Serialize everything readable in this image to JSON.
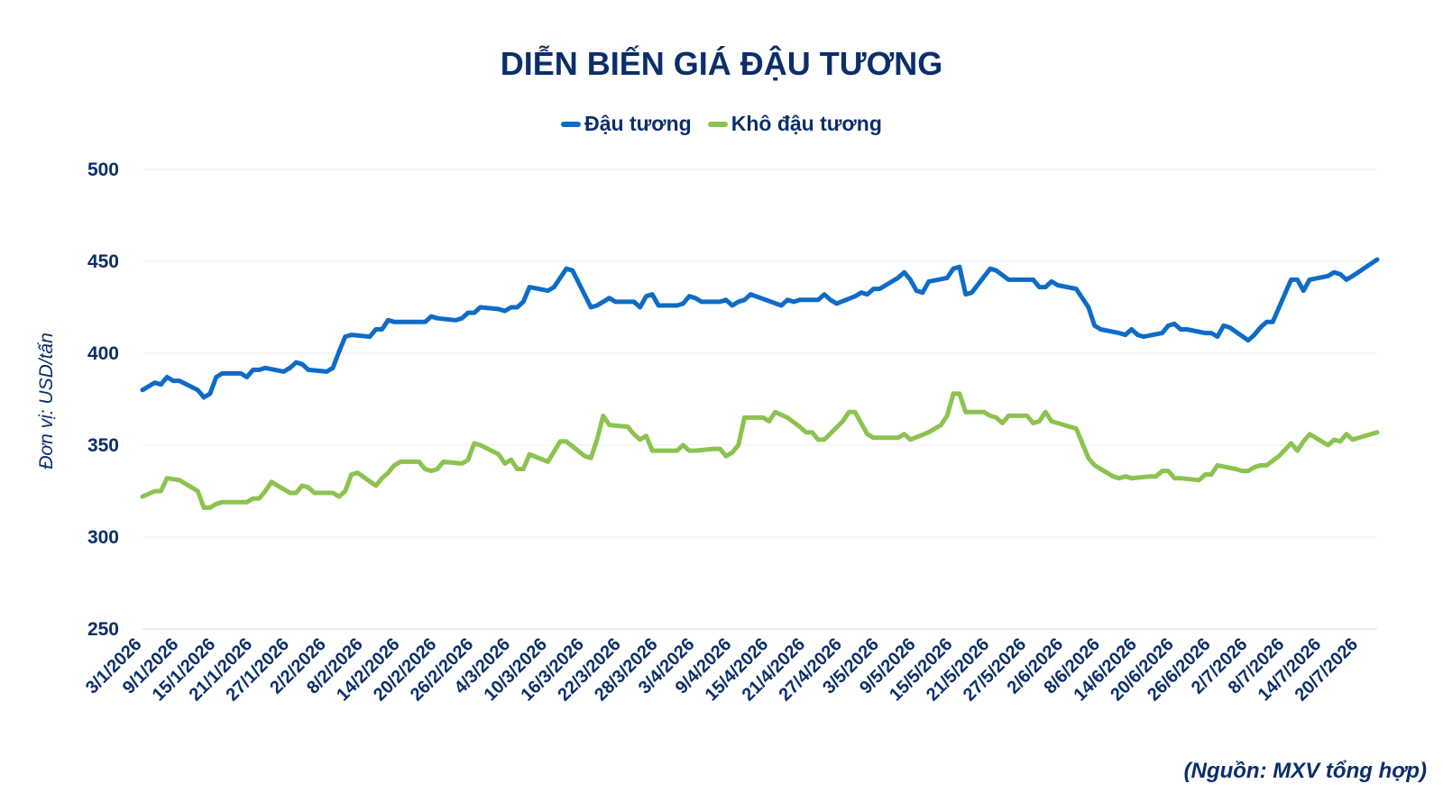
{
  "chart_data": {
    "type": "line",
    "title": "DIỄN BIẾN GIÁ ĐẬU TƯƠNG",
    "ylabel": "Đơn vị: USD/tấn",
    "xlabel": "",
    "source": "(Nguồn: MXV tổng hợp)",
    "ylim": [
      250,
      500
    ],
    "yticks": [
      250,
      300,
      350,
      400,
      450,
      500
    ],
    "grid": "horizontal",
    "legend_position": "top-center",
    "x_start": "3/1/2026",
    "x_end": "23/7/2026",
    "x_tick_labels": [
      "3/1/2026",
      "9/1/2026",
      "15/1/2026",
      "21/1/2026",
      "27/1/2026",
      "2/2/2026",
      "8/2/2026",
      "14/2/2026",
      "20/2/2026",
      "26/2/2026",
      "4/3/2026",
      "10/3/2026",
      "16/3/2026",
      "22/3/2026",
      "28/3/2026",
      "3/4/2026",
      "9/4/2026",
      "15/4/2026",
      "21/4/2026",
      "27/4/2026",
      "3/5/2026",
      "9/5/2026",
      "15/5/2026",
      "21/5/2026",
      "27/5/2026",
      "2/6/2026",
      "8/6/2026",
      "14/6/2026",
      "20/6/2026",
      "26/6/2026",
      "2/7/2026",
      "8/7/2026",
      "14/7/2026",
      "20/7/2026"
    ],
    "series": [
      {
        "name": "Đậu tương",
        "color": "#0e6bc7",
        "points": [
          [
            "3/1/2026",
            380
          ],
          [
            "5/1/2026",
            384
          ],
          [
            "6/1/2026",
            383
          ],
          [
            "7/1/2026",
            387
          ],
          [
            "8/1/2026",
            385
          ],
          [
            "9/1/2026",
            385
          ],
          [
            "12/1/2026",
            380
          ],
          [
            "13/1/2026",
            376
          ],
          [
            "14/1/2026",
            378
          ],
          [
            "15/1/2026",
            387
          ],
          [
            "16/1/2026",
            389
          ],
          [
            "19/1/2026",
            389
          ],
          [
            "20/1/2026",
            387
          ],
          [
            "21/1/2026",
            391
          ],
          [
            "22/1/2026",
            391
          ],
          [
            "23/1/2026",
            392
          ],
          [
            "26/1/2026",
            390
          ],
          [
            "27/1/2026",
            392
          ],
          [
            "28/1/2026",
            395
          ],
          [
            "29/1/2026",
            394
          ],
          [
            "30/1/2026",
            391
          ],
          [
            "2/2/2026",
            390
          ],
          [
            "3/2/2026",
            392
          ],
          [
            "4/2/2026",
            401
          ],
          [
            "5/2/2026",
            409
          ],
          [
            "6/2/2026",
            410
          ],
          [
            "9/2/2026",
            409
          ],
          [
            "10/2/2026",
            413
          ],
          [
            "11/2/2026",
            413
          ],
          [
            "12/2/2026",
            418
          ],
          [
            "13/2/2026",
            417
          ],
          [
            "16/2/2026",
            417
          ],
          [
            "17/2/2026",
            417
          ],
          [
            "18/2/2026",
            417
          ],
          [
            "19/2/2026",
            420
          ],
          [
            "20/2/2026",
            419
          ],
          [
            "23/2/2026",
            418
          ],
          [
            "24/2/2026",
            419
          ],
          [
            "25/2/2026",
            422
          ],
          [
            "26/2/2026",
            422
          ],
          [
            "27/2/2026",
            425
          ],
          [
            "2/3/2026",
            424
          ],
          [
            "3/3/2026",
            423
          ],
          [
            "4/3/2026",
            425
          ],
          [
            "5/3/2026",
            425
          ],
          [
            "6/3/2026",
            428
          ],
          [
            "7/3/2026",
            436
          ],
          [
            "10/3/2026",
            434
          ],
          [
            "11/3/2026",
            436
          ],
          [
            "13/3/2026",
            446
          ],
          [
            "14/3/2026",
            445
          ],
          [
            "17/3/2026",
            425
          ],
          [
            "18/3/2026",
            426
          ],
          [
            "20/3/2026",
            430
          ],
          [
            "21/3/2026",
            428
          ],
          [
            "24/3/2026",
            428
          ],
          [
            "25/3/2026",
            425
          ],
          [
            "26/3/2026",
            431
          ],
          [
            "27/3/2026",
            432
          ],
          [
            "28/3/2026",
            426
          ],
          [
            "31/3/2026",
            426
          ],
          [
            "1/4/2026",
            427
          ],
          [
            "2/4/2026",
            431
          ],
          [
            "3/4/2026",
            430
          ],
          [
            "4/4/2026",
            428
          ],
          [
            "7/4/2026",
            428
          ],
          [
            "8/4/2026",
            429
          ],
          [
            "9/4/2026",
            426
          ],
          [
            "10/4/2026",
            428
          ],
          [
            "11/4/2026",
            429
          ],
          [
            "12/4/2026",
            432
          ],
          [
            "17/4/2026",
            426
          ],
          [
            "18/4/2026",
            429
          ],
          [
            "19/4/2026",
            428
          ],
          [
            "20/4/2026",
            429
          ],
          [
            "21/4/2026",
            429
          ],
          [
            "23/4/2026",
            429
          ],
          [
            "24/4/2026",
            432
          ],
          [
            "25/4/2026",
            429
          ],
          [
            "26/4/2026",
            427
          ],
          [
            "29/4/2026",
            431
          ],
          [
            "30/4/2026",
            433
          ],
          [
            "1/5/2026",
            432
          ],
          [
            "2/5/2026",
            435
          ],
          [
            "3/5/2026",
            435
          ],
          [
            "6/5/2026",
            441
          ],
          [
            "7/5/2026",
            444
          ],
          [
            "8/5/2026",
            440
          ],
          [
            "9/5/2026",
            434
          ],
          [
            "10/5/2026",
            433
          ],
          [
            "11/5/2026",
            439
          ],
          [
            "14/5/2026",
            441
          ],
          [
            "15/5/2026",
            446
          ],
          [
            "16/5/2026",
            447
          ],
          [
            "17/5/2026",
            432
          ],
          [
            "18/5/2026",
            433
          ],
          [
            "21/5/2026",
            446
          ],
          [
            "22/5/2026",
            445
          ],
          [
            "24/5/2026",
            440
          ],
          [
            "25/5/2026",
            440
          ],
          [
            "28/5/2026",
            440
          ],
          [
            "29/5/2026",
            436
          ],
          [
            "30/5/2026",
            436
          ],
          [
            "31/5/2026",
            439
          ],
          [
            "1/6/2026",
            437
          ],
          [
            "4/6/2026",
            435
          ],
          [
            "6/6/2026",
            425
          ],
          [
            "7/6/2026",
            415
          ],
          [
            "8/6/2026",
            413
          ],
          [
            "11/6/2026",
            411
          ],
          [
            "12/6/2026",
            410
          ],
          [
            "13/6/2026",
            413
          ],
          [
            "14/6/2026",
            410
          ],
          [
            "15/6/2026",
            409
          ],
          [
            "18/6/2026",
            411
          ],
          [
            "19/6/2026",
            415
          ],
          [
            "20/6/2026",
            416
          ],
          [
            "21/6/2026",
            413
          ],
          [
            "22/6/2026",
            413
          ],
          [
            "25/6/2026",
            411
          ],
          [
            "26/6/2026",
            411
          ],
          [
            "27/6/2026",
            409
          ],
          [
            "28/6/2026",
            415
          ],
          [
            "29/6/2026",
            414
          ],
          [
            "2/7/2026",
            407
          ],
          [
            "3/7/2026",
            410
          ],
          [
            "4/7/2026",
            414
          ],
          [
            "5/7/2026",
            417
          ],
          [
            "6/7/2026",
            417
          ],
          [
            "9/7/2026",
            440
          ],
          [
            "10/7/2026",
            440
          ],
          [
            "11/7/2026",
            434
          ],
          [
            "12/7/2026",
            440
          ],
          [
            "15/7/2026",
            442
          ],
          [
            "16/7/2026",
            444
          ],
          [
            "17/7/2026",
            443
          ],
          [
            "18/7/2026",
            440
          ],
          [
            "19/7/2026",
            442
          ],
          [
            "23/7/2026",
            451
          ]
        ]
      },
      {
        "name": "Khô đậu tương",
        "color": "#8cc34f",
        "points": [
          [
            "3/1/2026",
            322
          ],
          [
            "5/1/2026",
            325
          ],
          [
            "6/1/2026",
            325
          ],
          [
            "7/1/2026",
            332
          ],
          [
            "9/1/2026",
            331
          ],
          [
            "12/1/2026",
            325
          ],
          [
            "13/1/2026",
            316
          ],
          [
            "14/1/2026",
            316
          ],
          [
            "15/1/2026",
            318
          ],
          [
            "16/1/2026",
            319
          ],
          [
            "19/1/2026",
            319
          ],
          [
            "20/1/2026",
            319
          ],
          [
            "21/1/2026",
            321
          ],
          [
            "22/1/2026",
            321
          ],
          [
            "23/1/2026",
            325
          ],
          [
            "24/1/2026",
            330
          ],
          [
            "27/1/2026",
            324
          ],
          [
            "28/1/2026",
            324
          ],
          [
            "29/1/2026",
            328
          ],
          [
            "30/1/2026",
            327
          ],
          [
            "31/1/2026",
            324
          ],
          [
            "3/2/2026",
            324
          ],
          [
            "4/2/2026",
            322
          ],
          [
            "5/2/2026",
            325
          ],
          [
            "6/2/2026",
            334
          ],
          [
            "7/2/2026",
            335
          ],
          [
            "10/2/2026",
            328
          ],
          [
            "11/2/2026",
            332
          ],
          [
            "12/2/2026",
            335
          ],
          [
            "13/2/2026",
            339
          ],
          [
            "14/2/2026",
            341
          ],
          [
            "17/2/2026",
            341
          ],
          [
            "18/2/2026",
            337
          ],
          [
            "19/2/2026",
            336
          ],
          [
            "20/2/2026",
            337
          ],
          [
            "21/2/2026",
            341
          ],
          [
            "24/2/2026",
            340
          ],
          [
            "25/2/2026",
            342
          ],
          [
            "26/2/2026",
            351
          ],
          [
            "27/2/2026",
            350
          ],
          [
            "2/3/2026",
            345
          ],
          [
            "3/3/2026",
            340
          ],
          [
            "4/3/2026",
            342
          ],
          [
            "5/3/2026",
            337
          ],
          [
            "6/3/2026",
            337
          ],
          [
            "7/3/2026",
            345
          ],
          [
            "10/3/2026",
            341
          ],
          [
            "12/3/2026",
            352
          ],
          [
            "13/3/2026",
            352
          ],
          [
            "16/3/2026",
            344
          ],
          [
            "17/3/2026",
            343
          ],
          [
            "18/3/2026",
            353
          ],
          [
            "19/3/2026",
            366
          ],
          [
            "20/3/2026",
            361
          ],
          [
            "23/3/2026",
            360
          ],
          [
            "24/3/2026",
            356
          ],
          [
            "25/3/2026",
            353
          ],
          [
            "26/3/2026",
            355
          ],
          [
            "27/3/2026",
            347
          ],
          [
            "30/3/2026",
            347
          ],
          [
            "31/3/2026",
            347
          ],
          [
            "1/4/2026",
            350
          ],
          [
            "2/4/2026",
            347
          ],
          [
            "3/4/2026",
            347
          ],
          [
            "6/4/2026",
            348
          ],
          [
            "7/4/2026",
            348
          ],
          [
            "8/4/2026",
            344
          ],
          [
            "9/4/2026",
            346
          ],
          [
            "10/4/2026",
            350
          ],
          [
            "11/4/2026",
            365
          ],
          [
            "14/4/2026",
            365
          ],
          [
            "15/4/2026",
            363
          ],
          [
            "16/4/2026",
            368
          ],
          [
            "18/4/2026",
            365
          ],
          [
            "20/4/2026",
            360
          ],
          [
            "21/4/2026",
            357
          ],
          [
            "22/4/2026",
            357
          ],
          [
            "23/4/2026",
            353
          ],
          [
            "24/4/2026",
            353
          ],
          [
            "27/4/2026",
            363
          ],
          [
            "28/4/2026",
            368
          ],
          [
            "29/4/2026",
            368
          ],
          [
            "1/5/2026",
            356
          ],
          [
            "2/5/2026",
            354
          ],
          [
            "5/5/2026",
            354
          ],
          [
            "6/5/2026",
            354
          ],
          [
            "7/5/2026",
            356
          ],
          [
            "8/5/2026",
            353
          ],
          [
            "11/5/2026",
            357
          ],
          [
            "13/5/2026",
            361
          ],
          [
            "14/5/2026",
            366
          ],
          [
            "15/5/2026",
            378
          ],
          [
            "16/5/2026",
            378
          ],
          [
            "17/5/2026",
            368
          ],
          [
            "20/5/2026",
            368
          ],
          [
            "21/5/2026",
            366
          ],
          [
            "22/5/2026",
            365
          ],
          [
            "23/5/2026",
            362
          ],
          [
            "24/5/2026",
            366
          ],
          [
            "27/5/2026",
            366
          ],
          [
            "28/5/2026",
            362
          ],
          [
            "29/5/2026",
            363
          ],
          [
            "30/5/2026",
            368
          ],
          [
            "31/5/2026",
            363
          ],
          [
            "3/6/2026",
            360
          ],
          [
            "4/6/2026",
            359
          ],
          [
            "5/6/2026",
            351
          ],
          [
            "6/6/2026",
            343
          ],
          [
            "7/6/2026",
            339
          ],
          [
            "10/6/2026",
            333
          ],
          [
            "11/6/2026",
            332
          ],
          [
            "12/6/2026",
            333
          ],
          [
            "13/6/2026",
            332
          ],
          [
            "16/6/2026",
            333
          ],
          [
            "17/6/2026",
            333
          ],
          [
            "18/6/2026",
            336
          ],
          [
            "19/6/2026",
            336
          ],
          [
            "20/6/2026",
            332
          ],
          [
            "21/6/2026",
            332
          ],
          [
            "24/6/2026",
            331
          ],
          [
            "25/6/2026",
            334
          ],
          [
            "26/6/2026",
            334
          ],
          [
            "27/6/2026",
            339
          ],
          [
            "30/6/2026",
            337
          ],
          [
            "1/7/2026",
            336
          ],
          [
            "2/7/2026",
            336
          ],
          [
            "3/7/2026",
            338
          ],
          [
            "4/7/2026",
            339
          ],
          [
            "5/7/2026",
            339
          ],
          [
            "7/7/2026",
            344
          ],
          [
            "9/7/2026",
            351
          ],
          [
            "10/7/2026",
            347
          ],
          [
            "11/7/2026",
            352
          ],
          [
            "12/7/2026",
            356
          ],
          [
            "15/7/2026",
            350
          ],
          [
            "16/7/2026",
            353
          ],
          [
            "17/7/2026",
            352
          ],
          [
            "18/7/2026",
            356
          ],
          [
            "19/7/2026",
            353
          ],
          [
            "23/7/2026",
            357
          ]
        ]
      }
    ]
  }
}
